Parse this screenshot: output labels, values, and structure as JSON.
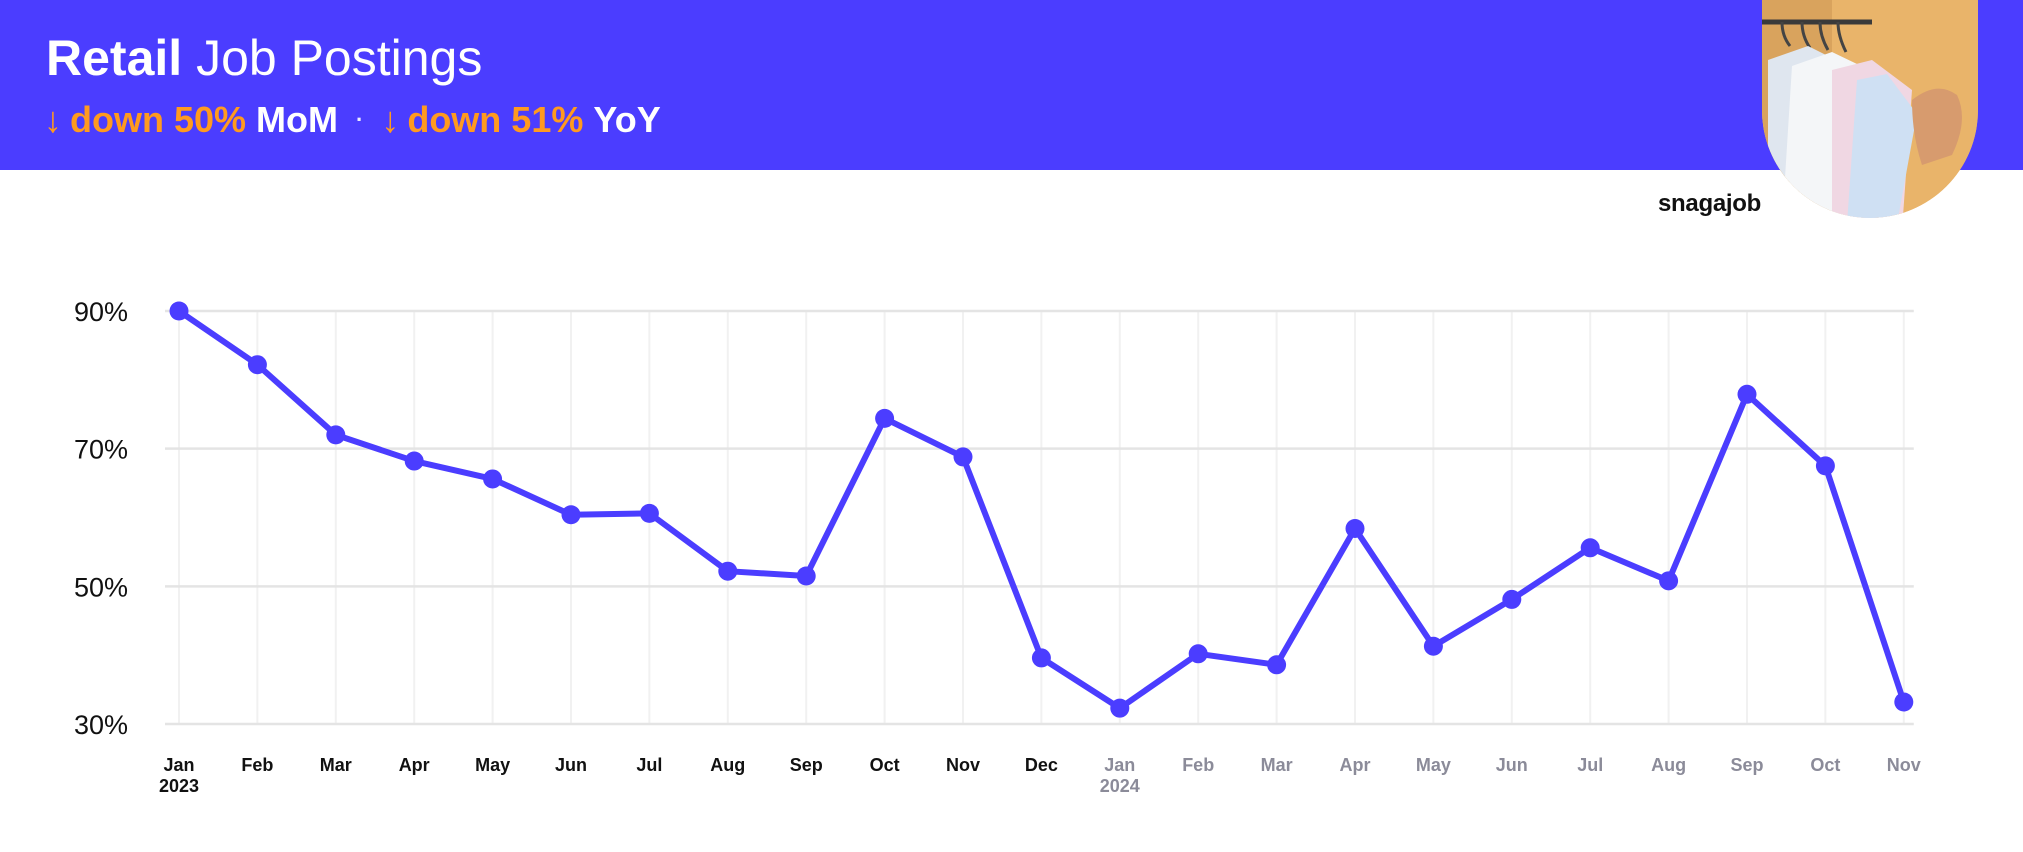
{
  "header": {
    "title_bold": "Retail",
    "title_light": "Job Postings",
    "mom": {
      "value": "down 50%",
      "period": "MoM"
    },
    "yoy": {
      "value": "down 51%",
      "period": "YoY"
    },
    "arrow_icon": "down-arrow-icon",
    "separator": "·"
  },
  "brand": {
    "name": "snagajob"
  },
  "colors": {
    "header_bg": "#4b3dff",
    "accent": "#ff9a1f",
    "line": "#4b3dff",
    "grid": "#e6e6e6"
  },
  "chart_data": {
    "type": "line",
    "title": "",
    "xlabel": "",
    "ylabel": "",
    "ylim": [
      30,
      90
    ],
    "y_ticks": [
      {
        "value": 90,
        "label": "90%"
      },
      {
        "value": 70,
        "label": "70%"
      },
      {
        "value": 50,
        "label": "50%"
      },
      {
        "value": 30,
        "label": "30%"
      }
    ],
    "grid": true,
    "x_ticks": [
      {
        "label": "Jan",
        "year": "2023",
        "muted": false
      },
      {
        "label": "Feb",
        "year": "",
        "muted": false
      },
      {
        "label": "Mar",
        "year": "",
        "muted": false
      },
      {
        "label": "Apr",
        "year": "",
        "muted": false
      },
      {
        "label": "May",
        "year": "",
        "muted": false
      },
      {
        "label": "Jun",
        "year": "",
        "muted": false
      },
      {
        "label": "Jul",
        "year": "",
        "muted": false
      },
      {
        "label": "Aug",
        "year": "",
        "muted": false
      },
      {
        "label": "Sep",
        "year": "",
        "muted": false
      },
      {
        "label": "Oct",
        "year": "",
        "muted": false
      },
      {
        "label": "Nov",
        "year": "",
        "muted": false
      },
      {
        "label": "Dec",
        "year": "",
        "muted": false
      },
      {
        "label": "Jan",
        "year": "2024",
        "muted": true
      },
      {
        "label": "Feb",
        "year": "",
        "muted": true
      },
      {
        "label": "Mar",
        "year": "",
        "muted": true
      },
      {
        "label": "Apr",
        "year": "",
        "muted": true
      },
      {
        "label": "May",
        "year": "",
        "muted": true
      },
      {
        "label": "Jun",
        "year": "",
        "muted": true
      },
      {
        "label": "Jul",
        "year": "",
        "muted": true
      },
      {
        "label": "Aug",
        "year": "",
        "muted": true
      },
      {
        "label": "Sep",
        "year": "",
        "muted": true
      },
      {
        "label": "Oct",
        "year": "",
        "muted": true
      },
      {
        "label": "Nov",
        "year": "",
        "muted": true
      }
    ],
    "series": [
      {
        "values": [
          90,
          82.2,
          72,
          68.2,
          65.6,
          60.4,
          60.6,
          52.2,
          51.5,
          74.4,
          68.8,
          39.6,
          32.3,
          40.2,
          38.6,
          58.4,
          41.3,
          48.1,
          55.6,
          50.8,
          77.9,
          67.5,
          33.2
        ]
      }
    ]
  }
}
